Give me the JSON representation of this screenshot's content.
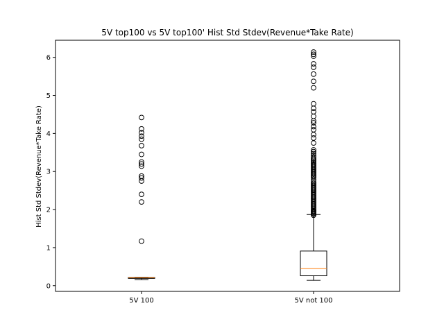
{
  "chart_data": {
    "type": "box",
    "title": "5V top100 vs 5V top100' Hist Std Stdev(Revenue*Take Rate)",
    "xlabel": "",
    "ylabel": "Hist Std Stdev(Revenue*Take Rate)",
    "ylim": [
      -0.15,
      6.45
    ],
    "yticks": [
      0,
      1,
      2,
      3,
      4,
      5,
      6
    ],
    "grid": false,
    "categories": [
      "5V 100",
      "5V not 100"
    ],
    "series": [
      {
        "category": "5V 100",
        "whisker_low": 0.16,
        "q1": 0.19,
        "median": 0.205,
        "q3": 0.215,
        "whisker_high": 0.22,
        "outliers": [
          1.17,
          2.2,
          2.4,
          2.75,
          2.83,
          2.88,
          3.14,
          3.2,
          3.25,
          3.45,
          3.68,
          3.85,
          3.93,
          4.02,
          4.12,
          4.42
        ]
      },
      {
        "category": "5V not 100",
        "whisker_low": 0.14,
        "q1": 0.26,
        "median": 0.45,
        "q3": 0.91,
        "whisker_high": 1.87,
        "outliers": [
          1.85,
          1.88,
          1.9,
          1.93,
          1.95,
          1.97,
          2.0,
          2.03,
          2.06,
          2.09,
          2.12,
          2.15,
          2.18,
          2.21,
          2.24,
          2.27,
          2.3,
          2.33,
          2.36,
          2.39,
          2.42,
          2.45,
          2.48,
          2.51,
          2.54,
          2.57,
          2.6,
          2.63,
          2.66,
          2.69,
          2.72,
          2.78,
          2.84,
          2.87,
          2.9,
          2.93,
          2.96,
          2.99,
          3.02,
          3.05,
          3.08,
          3.11,
          3.14,
          3.17,
          3.2,
          3.23,
          3.27,
          3.3,
          3.34,
          3.38,
          3.42,
          3.47,
          3.52,
          3.57,
          3.75,
          3.88,
          3.97,
          4.1,
          4.18,
          4.28,
          4.33,
          4.45,
          4.57,
          4.66,
          4.78,
          5.2,
          5.37,
          5.56,
          5.74,
          5.83,
          6.03,
          6.08,
          6.14
        ]
      }
    ],
    "box_color": "#000000",
    "median_color": "#ff7f0e",
    "outlier_color": "#000000"
  }
}
